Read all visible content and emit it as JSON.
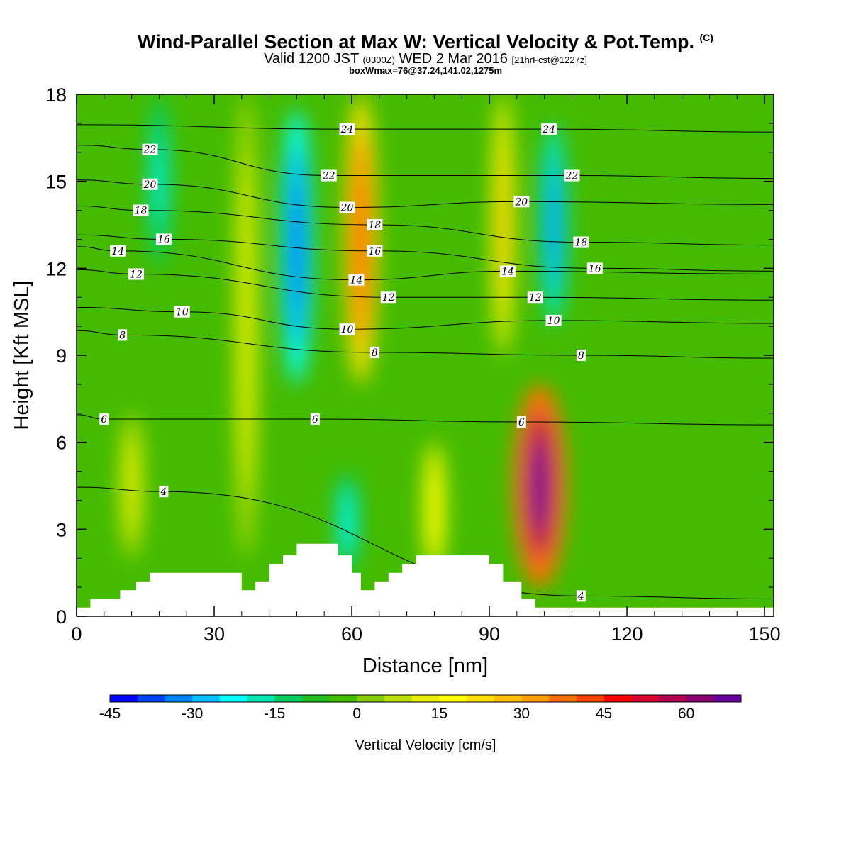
{
  "header": {
    "title": "Wind-Parallel Section at Max W: Vertical Velocity & Pot.Temp.",
    "copyright": "(C)",
    "valid_prefix": "Valid 1200 JST",
    "valid_utc": "(0300Z)",
    "valid_date": "WED 2 Mar 2016",
    "forecast": "[21hrFcst@1227z]",
    "box_info": "boxWmax=76@37.24,141.02,1275m"
  },
  "chart_data": {
    "type": "heatmap",
    "xlabel": "Distance [nm]",
    "ylabel": "Height [Kft MSL]",
    "xlim": [
      0,
      152
    ],
    "ylim": [
      0,
      18
    ],
    "x_ticks": [
      "0",
      "30",
      "60",
      "90",
      "120",
      "150"
    ],
    "y_ticks": [
      "0",
      "3",
      "6",
      "9",
      "12",
      "15",
      "18"
    ],
    "colorbar": {
      "label": "Vertical Velocity [cm/s]",
      "range": [
        -45,
        70
      ],
      "tick_labels": [
        "-45",
        "-30",
        "-15",
        "0",
        "15",
        "30",
        "45",
        "60"
      ],
      "colors": [
        "#0000ff",
        "#0040ff",
        "#0080ff",
        "#00c0ff",
        "#00ffff",
        "#00e6b0",
        "#00cc60",
        "#22bb22",
        "#44bb00",
        "#88cc00",
        "#bbe000",
        "#e8f000",
        "#ffff00",
        "#ffe000",
        "#ffc000",
        "#ffa000",
        "#ff7000",
        "#ff4000",
        "#ff0000",
        "#dd0030",
        "#b00050",
        "#880070",
        "#660099"
      ]
    },
    "vertical_velocity_features": [
      {
        "x": 48,
        "z_from": 8,
        "z_to": 17.5,
        "w": -40
      },
      {
        "x": 18,
        "z_from": 12,
        "z_to": 18,
        "w": -22
      },
      {
        "x": 59,
        "z_from": 1.5,
        "z_to": 5,
        "w": -25
      },
      {
        "x": 62,
        "z_from": 8,
        "z_to": 18,
        "w": 42
      },
      {
        "x": 104,
        "z_from": 10,
        "z_to": 17,
        "w": -35
      },
      {
        "x": 93,
        "z_from": 9,
        "z_to": 18,
        "w": 25
      },
      {
        "x": 101,
        "z_from": 1,
        "z_to": 8,
        "w": 68
      },
      {
        "x": 37,
        "z_from": 2,
        "z_to": 18,
        "w": 12
      },
      {
        "x": 78,
        "z_from": 1.5,
        "z_to": 6,
        "w": 20
      },
      {
        "x": 12,
        "z_from": 2,
        "z_to": 7,
        "w": 14
      }
    ],
    "theta_contour_labels": [
      {
        "text": "24",
        "x": 59,
        "z": 16.8
      },
      {
        "text": "24",
        "x": 103,
        "z": 16.8
      },
      {
        "text": "22",
        "x": 16,
        "z": 16.1
      },
      {
        "text": "22",
        "x": 55,
        "z": 15.2
      },
      {
        "text": "22",
        "x": 108,
        "z": 15.2
      },
      {
        "text": "20",
        "x": 16,
        "z": 14.9
      },
      {
        "text": "20",
        "x": 59,
        "z": 14.1
      },
      {
        "text": "20",
        "x": 97,
        "z": 14.3
      },
      {
        "text": "18",
        "x": 14,
        "z": 14.0
      },
      {
        "text": "18",
        "x": 65,
        "z": 13.5
      },
      {
        "text": "18",
        "x": 110,
        "z": 12.9
      },
      {
        "text": "16",
        "x": 19,
        "z": 13.0
      },
      {
        "text": "16",
        "x": 65,
        "z": 12.6
      },
      {
        "text": "16",
        "x": 113,
        "z": 12.0
      },
      {
        "text": "14",
        "x": 9,
        "z": 12.6
      },
      {
        "text": "14",
        "x": 61,
        "z": 11.6
      },
      {
        "text": "14",
        "x": 94,
        "z": 11.9
      },
      {
        "text": "12",
        "x": 13,
        "z": 11.8
      },
      {
        "text": "12",
        "x": 68,
        "z": 11.0
      },
      {
        "text": "12",
        "x": 100,
        "z": 11.0
      },
      {
        "text": "10",
        "x": 23,
        "z": 10.5
      },
      {
        "text": "10",
        "x": 59,
        "z": 9.9
      },
      {
        "text": "10",
        "x": 104,
        "z": 10.2
      },
      {
        "text": "8",
        "x": 10,
        "z": 9.7
      },
      {
        "text": "8",
        "x": 65,
        "z": 9.1
      },
      {
        "text": "8",
        "x": 110,
        "z": 9.0
      },
      {
        "text": "6",
        "x": 6,
        "z": 6.8
      },
      {
        "text": "6",
        "x": 52,
        "z": 6.8
      },
      {
        "text": "6",
        "x": 97,
        "z": 6.7
      },
      {
        "text": "4",
        "x": 19,
        "z": 4.3
      },
      {
        "text": "4",
        "x": 110,
        "z": 0.7
      }
    ],
    "terrain": [
      [
        0,
        0.3
      ],
      [
        3,
        0.3
      ],
      [
        3,
        0.6
      ],
      [
        9.5,
        0.6
      ],
      [
        9.5,
        0.9
      ],
      [
        13,
        0.9
      ],
      [
        13,
        1.2
      ],
      [
        16,
        1.2
      ],
      [
        16,
        1.5
      ],
      [
        36,
        1.5
      ],
      [
        36,
        0.9
      ],
      [
        39,
        0.9
      ],
      [
        39,
        1.2
      ],
      [
        42,
        1.2
      ],
      [
        42,
        1.8
      ],
      [
        45,
        1.8
      ],
      [
        45,
        2.1
      ],
      [
        48,
        2.1
      ],
      [
        48,
        2.5
      ],
      [
        57,
        2.5
      ],
      [
        57,
        2.1
      ],
      [
        60,
        2.1
      ],
      [
        60,
        1.5
      ],
      [
        62,
        1.5
      ],
      [
        62,
        0.9
      ],
      [
        65,
        0.9
      ],
      [
        65,
        1.2
      ],
      [
        68,
        1.2
      ],
      [
        68,
        1.5
      ],
      [
        71,
        1.5
      ],
      [
        71,
        1.8
      ],
      [
        74,
        1.8
      ],
      [
        74,
        2.1
      ],
      [
        90,
        2.1
      ],
      [
        90,
        1.8
      ],
      [
        93,
        1.8
      ],
      [
        93,
        1.2
      ],
      [
        97,
        1.2
      ],
      [
        97,
        0.6
      ],
      [
        100,
        0.6
      ],
      [
        100,
        0.3
      ],
      [
        152,
        0.3
      ]
    ]
  }
}
